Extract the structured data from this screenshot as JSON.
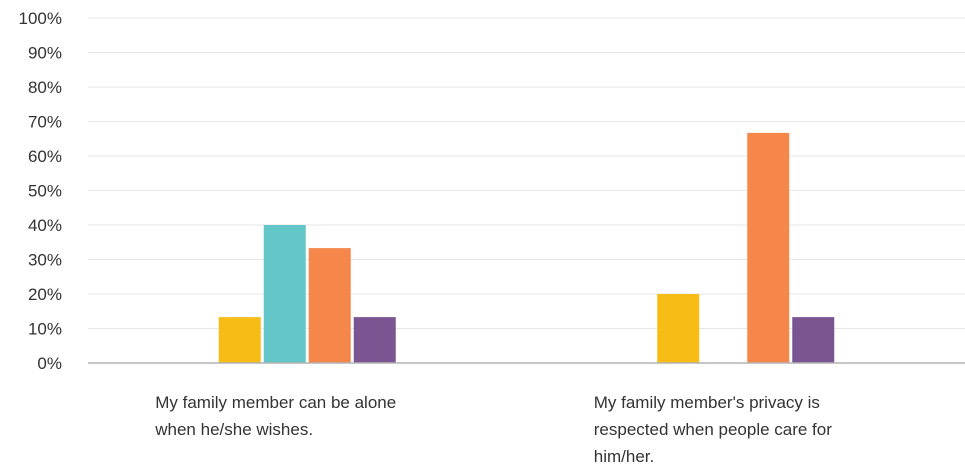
{
  "chart_data": {
    "type": "bar",
    "categories": [
      [
        "My family member can be alone",
        "when he/she wishes."
      ],
      [
        "My family member's privacy is",
        "respected when people care for",
        "him/her."
      ]
    ],
    "series": [
      {
        "color": "#f7bc15",
        "values": [
          13.3,
          20.0
        ]
      },
      {
        "color": "#63c6c9",
        "values": [
          40.0,
          0
        ]
      },
      {
        "color": "#f5874a",
        "values": [
          33.3,
          66.7
        ]
      },
      {
        "color": "#7b5592",
        "values": [
          13.3,
          13.3
        ]
      }
    ],
    "y_ticks": [
      "0%",
      "10%",
      "20%",
      "30%",
      "40%",
      "50%",
      "60%",
      "70%",
      "80%",
      "90%",
      "100%"
    ],
    "ylim": [
      0,
      100
    ],
    "grid": true,
    "legend": "none",
    "colors": {
      "grid": "#e6e6e6",
      "axis": "#b3b3b3",
      "text": "#333333"
    }
  }
}
